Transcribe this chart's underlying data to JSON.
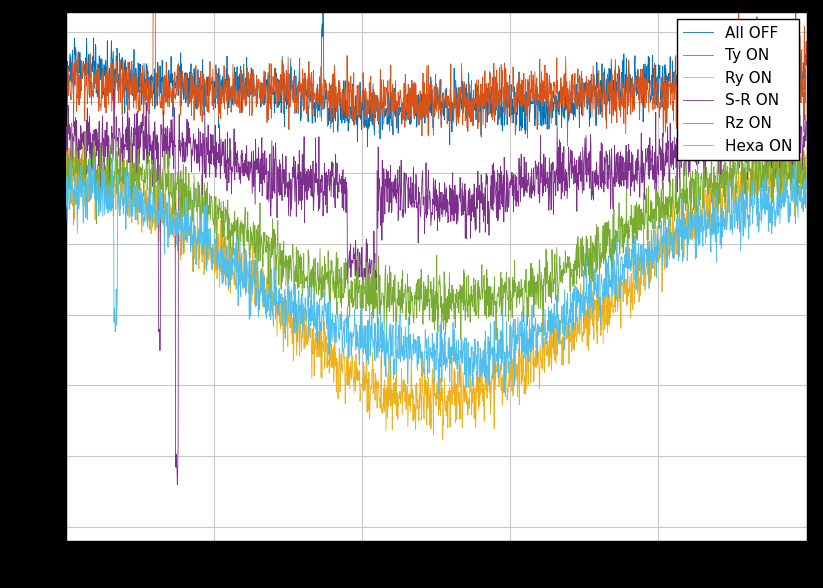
{
  "series": [
    {
      "label": "All OFF",
      "color": "#0072BD"
    },
    {
      "label": "Ty ON",
      "color": "#D95319"
    },
    {
      "label": "Ry ON",
      "color": "#EDB120"
    },
    {
      "label": "S-R ON",
      "color": "#7E2F8E"
    },
    {
      "label": "Rz ON",
      "color": "#77AC30"
    },
    {
      "label": "Hexa ON",
      "color": "#4DBEEE"
    }
  ],
  "n_points": 2000,
  "xlim": [
    0,
    1
  ],
  "ylim": [
    -1.05,
    0.82
  ],
  "figsize": [
    8.23,
    5.88
  ],
  "dpi": 100,
  "bg_color": "#ffffff",
  "grid_color": "#c8c8c8",
  "legend_loc": "upper right",
  "legend_fontsize": 11,
  "linewidth": 0.6,
  "outer_bg": "#000000"
}
